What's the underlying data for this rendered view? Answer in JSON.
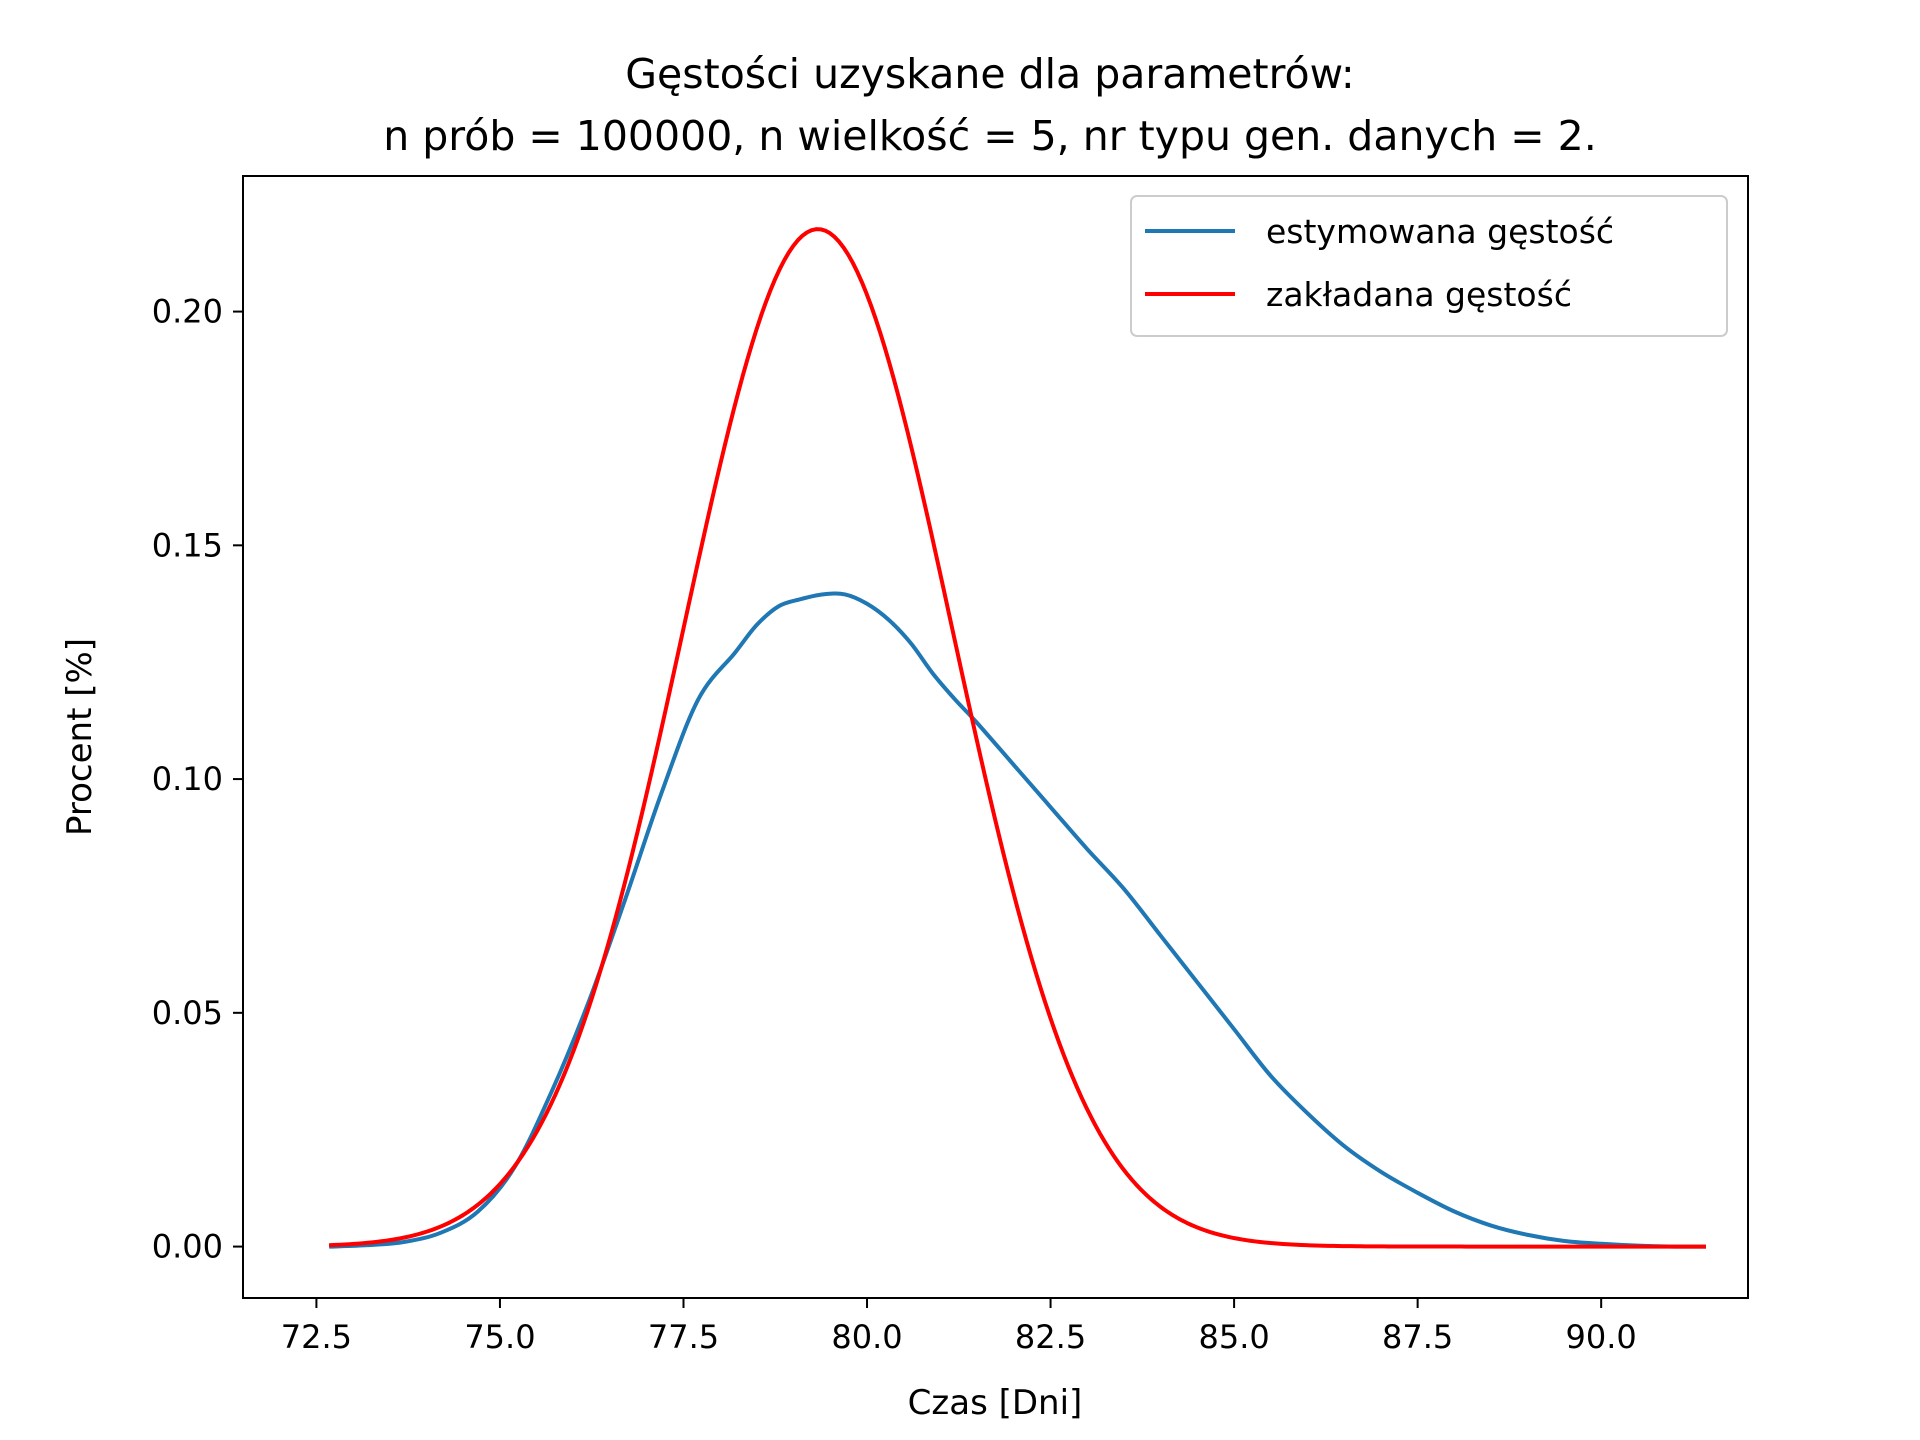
{
  "chart_data": {
    "type": "line",
    "title_line1": "Gęstości uzyskane dla parametrów:",
    "title_line2": "n prób = 100000, n wielkość = 5, nr typu gen. danych = 2.",
    "xlabel": "Czas [Dni]",
    "ylabel": "Procent [%]",
    "xlim": [
      71.5,
      92.0
    ],
    "ylim": [
      -0.011,
      0.229
    ],
    "xticks": [
      72.5,
      75.0,
      77.5,
      80.0,
      82.5,
      85.0,
      87.5,
      90.0
    ],
    "xtick_labels": [
      "72.5",
      "75.0",
      "77.5",
      "80.0",
      "82.5",
      "85.0",
      "87.5",
      "90.0"
    ],
    "yticks": [
      0.0,
      0.05,
      0.1,
      0.15,
      0.2
    ],
    "ytick_labels": [
      "0.00",
      "0.05",
      "0.10",
      "0.15",
      "0.20"
    ],
    "grid": false,
    "legend_position": "top-right",
    "series": [
      {
        "name": "estymowana gęstość",
        "color": "#1f77b4",
        "x": [
          72.7,
          73.2,
          73.7,
          74.2,
          74.7,
          75.2,
          75.7,
          76.2,
          76.7,
          77.2,
          77.7,
          78.2,
          78.5,
          78.8,
          79.1,
          79.4,
          79.7,
          80.0,
          80.3,
          80.6,
          80.9,
          81.2,
          81.5,
          82.0,
          82.5,
          83.0,
          83.5,
          84.0,
          84.5,
          85.0,
          85.5,
          86.0,
          86.5,
          87.0,
          87.5,
          88.0,
          88.5,
          89.0,
          89.5,
          90.0,
          90.5,
          91.0,
          91.4
        ],
        "y": [
          0.0,
          0.0003,
          0.001,
          0.003,
          0.0075,
          0.017,
          0.033,
          0.052,
          0.074,
          0.097,
          0.117,
          0.127,
          0.133,
          0.137,
          0.1385,
          0.1395,
          0.1395,
          0.1375,
          0.134,
          0.129,
          0.1225,
          0.117,
          0.112,
          0.103,
          0.094,
          0.085,
          0.0765,
          0.0665,
          0.0565,
          0.0465,
          0.0365,
          0.0285,
          0.0215,
          0.016,
          0.0115,
          0.0075,
          0.0045,
          0.0025,
          0.0012,
          0.0006,
          0.0002,
          0.0,
          0.0
        ]
      },
      {
        "name": "zakładana gęstość",
        "color": "#ff0000",
        "mean": 79.33,
        "std": 1.833,
        "x_range": [
          72.7,
          91.4
        ]
      }
    ]
  }
}
